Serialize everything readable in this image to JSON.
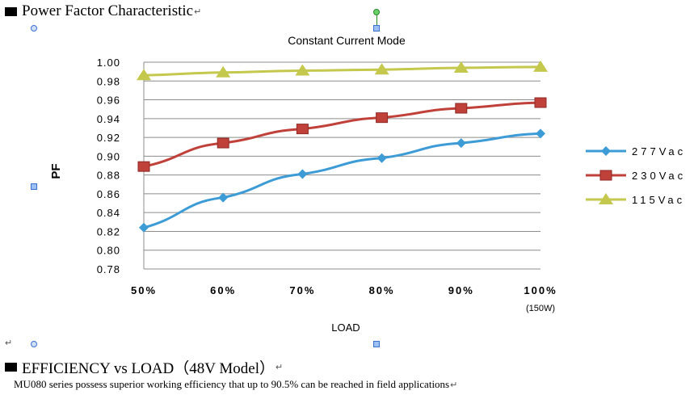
{
  "document": {
    "heading1": "Power Factor Characteristic",
    "heading2": "EFFICIENCY vs LOAD（48V Model）",
    "paragraph": "MU080 series possess superior working efficiency that up to 90.5% can be reached in field applications",
    "mark": "↵"
  },
  "chart_data": {
    "type": "line",
    "title": "Constant Current Mode",
    "xlabel": "LOAD",
    "ylabel": "PF",
    "categories": [
      "50%",
      "60%",
      "70%",
      "80%",
      "90%",
      "100%"
    ],
    "x_note": "(150W)",
    "ylim": [
      0.78,
      1.0
    ],
    "yticks": [
      "1.00",
      "0.98",
      "0.96",
      "0.94",
      "0.92",
      "0.90",
      "0.88",
      "0.86",
      "0.84",
      "0.82",
      "0.80",
      "0.78"
    ],
    "grid": true,
    "legend_position": "right",
    "series": [
      {
        "name": "277Vac",
        "marker": "diamond",
        "color": "#3d9bd6",
        "values": [
          0.824,
          0.856,
          0.881,
          0.898,
          0.914,
          0.924
        ]
      },
      {
        "name": "230Vac",
        "marker": "square",
        "color": "#c0403a",
        "values": [
          0.889,
          0.914,
          0.929,
          0.941,
          0.951,
          0.957
        ]
      },
      {
        "name": "115Vac",
        "marker": "triangle",
        "color": "#c4c84c",
        "values": [
          0.986,
          0.989,
          0.991,
          0.992,
          0.994,
          0.995
        ]
      }
    ]
  }
}
